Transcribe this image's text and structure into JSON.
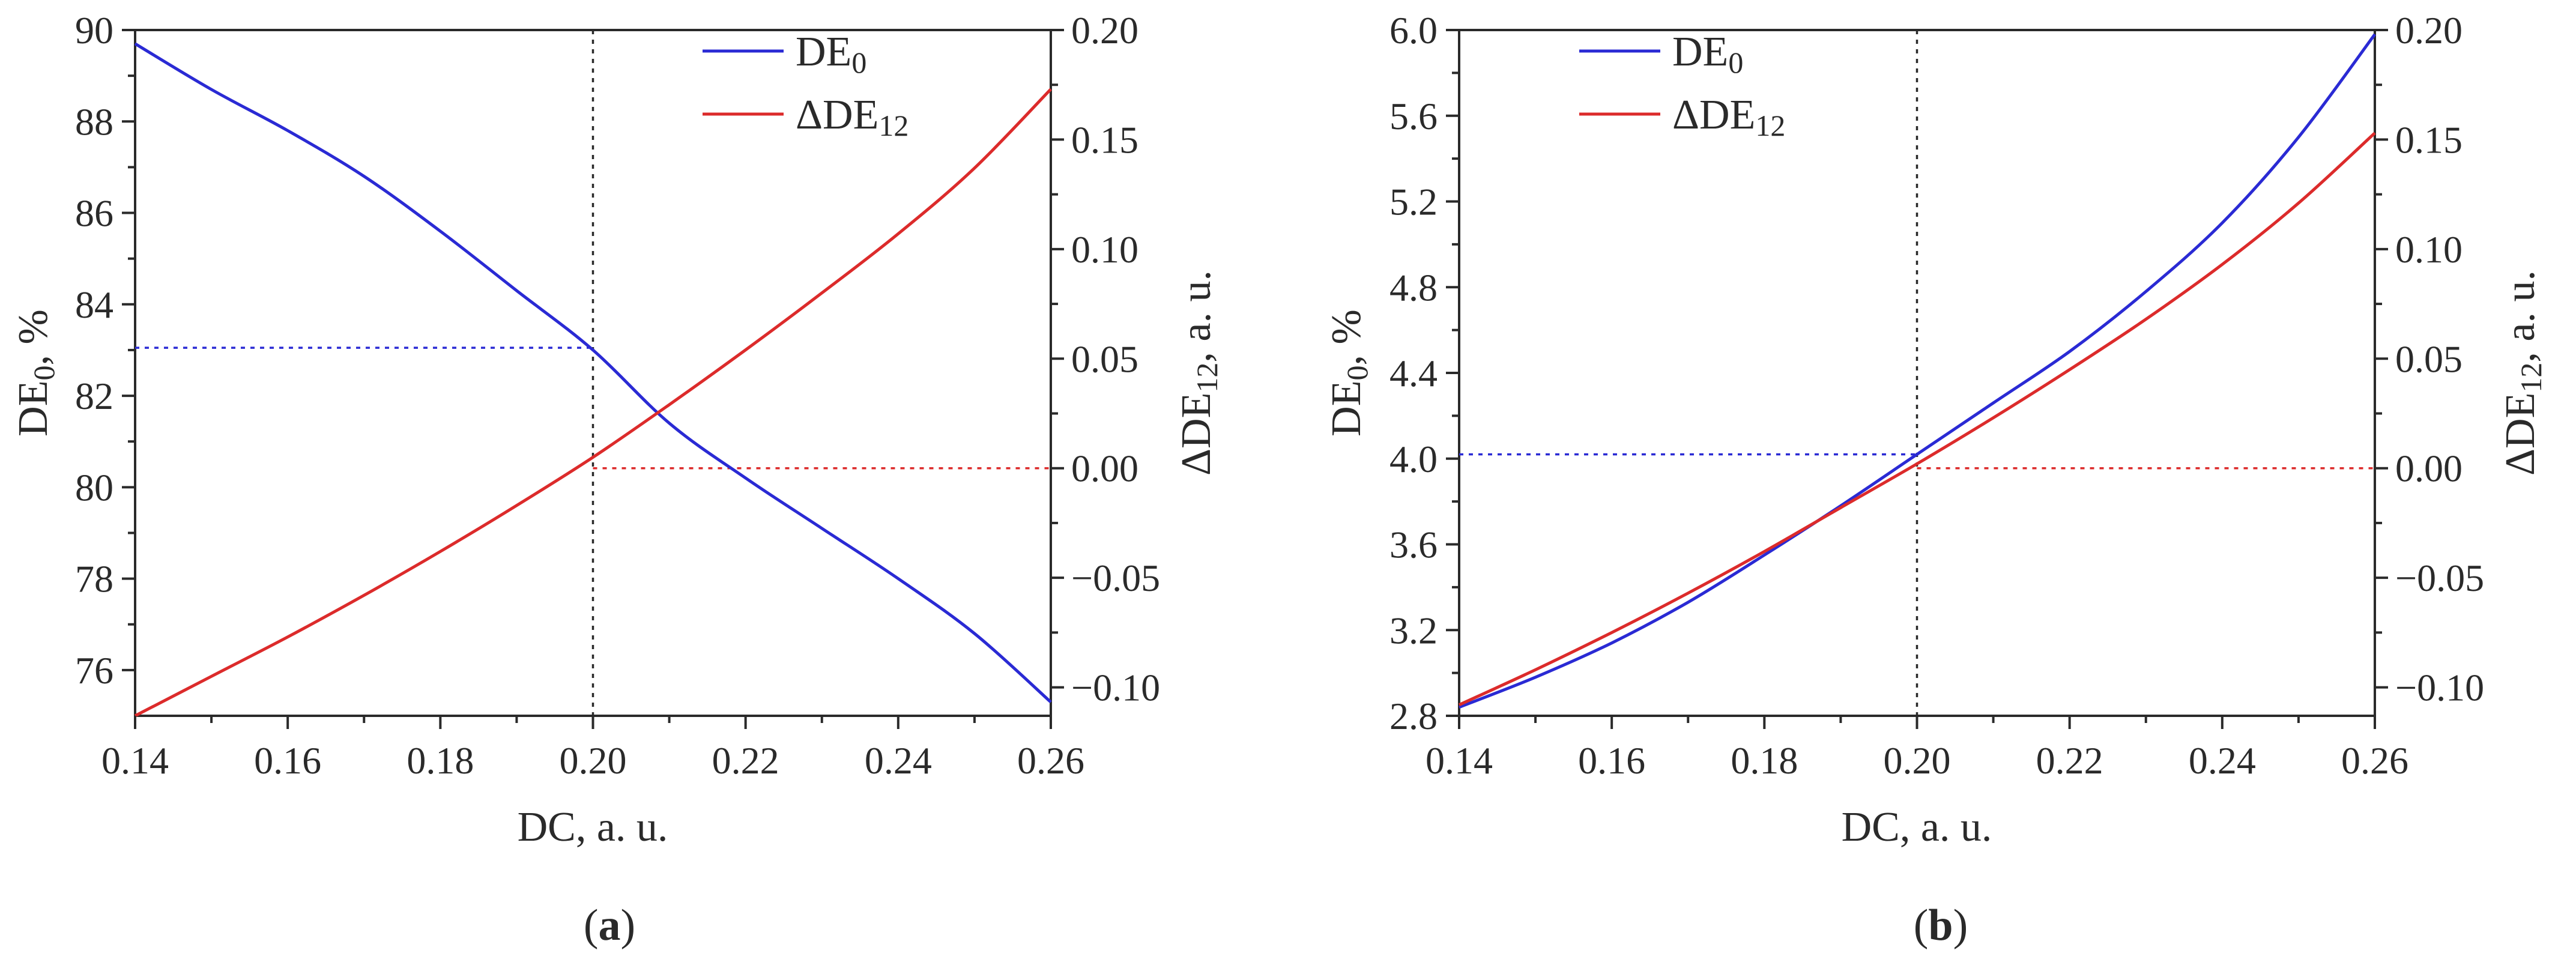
{
  "colors": {
    "de0": "#2a2ad4",
    "dde12": "#dc2b2b",
    "axis": "#2a2a2a",
    "guide": "#2a2a2a"
  },
  "chart_data": [
    {
      "panel": "a",
      "panel_label": "(a)",
      "panel_letter": "a",
      "type": "line",
      "xlabel": "DC, a. u.",
      "ylabel_left": "DE0, %",
      "ylabel_left_main": "DE",
      "ylabel_left_sub": "0",
      "ylabel_left_tail": ", %",
      "ylabel_right": "ΔDE12, a. u.",
      "ylabel_right_main": "ΔDE",
      "ylabel_right_sub": "12",
      "ylabel_right_tail": ", a. u.",
      "xlim": [
        0.14,
        0.26
      ],
      "ylim_left": [
        75,
        90
      ],
      "ylim_right": [
        -0.113,
        0.2
      ],
      "xticks": [
        0.14,
        0.16,
        0.18,
        0.2,
        0.22,
        0.24,
        0.26
      ],
      "xtick_labels": [
        "0.14",
        "0.16",
        "0.18",
        "0.20",
        "0.22",
        "0.24",
        "0.26"
      ],
      "yticks_left": [
        76,
        78,
        80,
        82,
        84,
        86,
        88,
        90
      ],
      "ytick_labels_left": [
        "76",
        "78",
        "80",
        "82",
        "84",
        "86",
        "88",
        "90"
      ],
      "yticks_right": [
        -0.1,
        -0.05,
        0,
        0.05,
        0.1,
        0.15,
        0.2
      ],
      "ytick_labels_right": [
        "−0.10",
        "−0.05",
        "0.00",
        "0.05",
        "0.10",
        "0.15",
        "0.20"
      ],
      "legend": [
        {
          "main": "DE",
          "sub": "0",
          "series": "de0"
        },
        {
          "main": "ΔDE",
          "sub": "12",
          "series": "dde12"
        }
      ],
      "legend_position": "top-center",
      "series": [
        {
          "name": "DE0",
          "key": "de0",
          "axis": "left",
          "x": [
            0.14,
            0.15,
            0.16,
            0.17,
            0.18,
            0.19,
            0.2,
            0.21,
            0.22,
            0.23,
            0.24,
            0.25,
            0.26
          ],
          "y": [
            89.7,
            88.7,
            87.8,
            86.8,
            85.6,
            84.3,
            83.0,
            81.4,
            80.2,
            79.1,
            78.0,
            76.8,
            75.3
          ]
        },
        {
          "name": "ΔDE12",
          "key": "dde12",
          "axis": "right",
          "x": [
            0.14,
            0.15,
            0.16,
            0.17,
            0.18,
            0.19,
            0.2,
            0.21,
            0.22,
            0.23,
            0.24,
            0.25,
            0.26
          ],
          "y": [
            -0.113,
            -0.095,
            -0.077,
            -0.058,
            -0.038,
            -0.017,
            0.005,
            0.029,
            0.054,
            0.08,
            0.107,
            0.137,
            0.173
          ]
        }
      ],
      "guides": {
        "x": 0.2,
        "left_y": 83.05,
        "right_y": 0.0
      }
    },
    {
      "panel": "b",
      "panel_label": "(b)",
      "panel_letter": "b",
      "type": "line",
      "xlabel": "DC, a. u.",
      "ylabel_left": "DE0, %",
      "ylabel_left_main": "DE",
      "ylabel_left_sub": "0",
      "ylabel_left_tail": ", %",
      "ylabel_right": "ΔDE12, a. u.",
      "ylabel_right_main": "ΔDE",
      "ylabel_right_sub": "12",
      "ylabel_right_tail": ", a. u.",
      "xlim": [
        0.14,
        0.26
      ],
      "ylim_left": [
        2.8,
        6.0
      ],
      "ylim_right": [
        -0.113,
        0.2
      ],
      "xticks": [
        0.14,
        0.16,
        0.18,
        0.2,
        0.22,
        0.24,
        0.26
      ],
      "xtick_labels": [
        "0.14",
        "0.16",
        "0.18",
        "0.20",
        "0.22",
        "0.24",
        "0.26"
      ],
      "yticks_left": [
        2.8,
        3.2,
        3.6,
        4.0,
        4.4,
        4.8,
        5.2,
        5.6,
        6.0
      ],
      "ytick_labels_left": [
        "2.8",
        "3.2",
        "3.6",
        "4.0",
        "4.4",
        "4.8",
        "5.2",
        "5.6",
        "6.0"
      ],
      "yticks_right": [
        -0.1,
        -0.05,
        0,
        0.05,
        0.1,
        0.15,
        0.2
      ],
      "ytick_labels_right": [
        "−0.10",
        "−0.05",
        "0.00",
        "0.05",
        "0.10",
        "0.15",
        "0.20"
      ],
      "legend": [
        {
          "main": "DE",
          "sub": "0",
          "series": "de0"
        },
        {
          "main": "ΔDE",
          "sub": "12",
          "series": "dde12"
        }
      ],
      "legend_position": "top-left",
      "series": [
        {
          "name": "DE0",
          "key": "de0",
          "axis": "left",
          "x": [
            0.14,
            0.15,
            0.16,
            0.17,
            0.18,
            0.19,
            0.2,
            0.21,
            0.22,
            0.23,
            0.24,
            0.25,
            0.26
          ],
          "y": [
            2.84,
            2.98,
            3.14,
            3.33,
            3.55,
            3.78,
            4.02,
            4.26,
            4.5,
            4.78,
            5.1,
            5.5,
            5.98
          ]
        },
        {
          "name": "ΔDE12",
          "key": "dde12",
          "axis": "right",
          "x": [
            0.14,
            0.15,
            0.16,
            0.17,
            0.18,
            0.19,
            0.2,
            0.21,
            0.22,
            0.23,
            0.24,
            0.25,
            0.26
          ],
          "y": [
            -0.108,
            -0.092,
            -0.075,
            -0.057,
            -0.038,
            -0.018,
            0.002,
            0.023,
            0.045,
            0.068,
            0.093,
            0.121,
            0.153
          ]
        }
      ],
      "guides": {
        "x": 0.2,
        "left_y": 4.02,
        "right_y": 0.0
      }
    }
  ]
}
